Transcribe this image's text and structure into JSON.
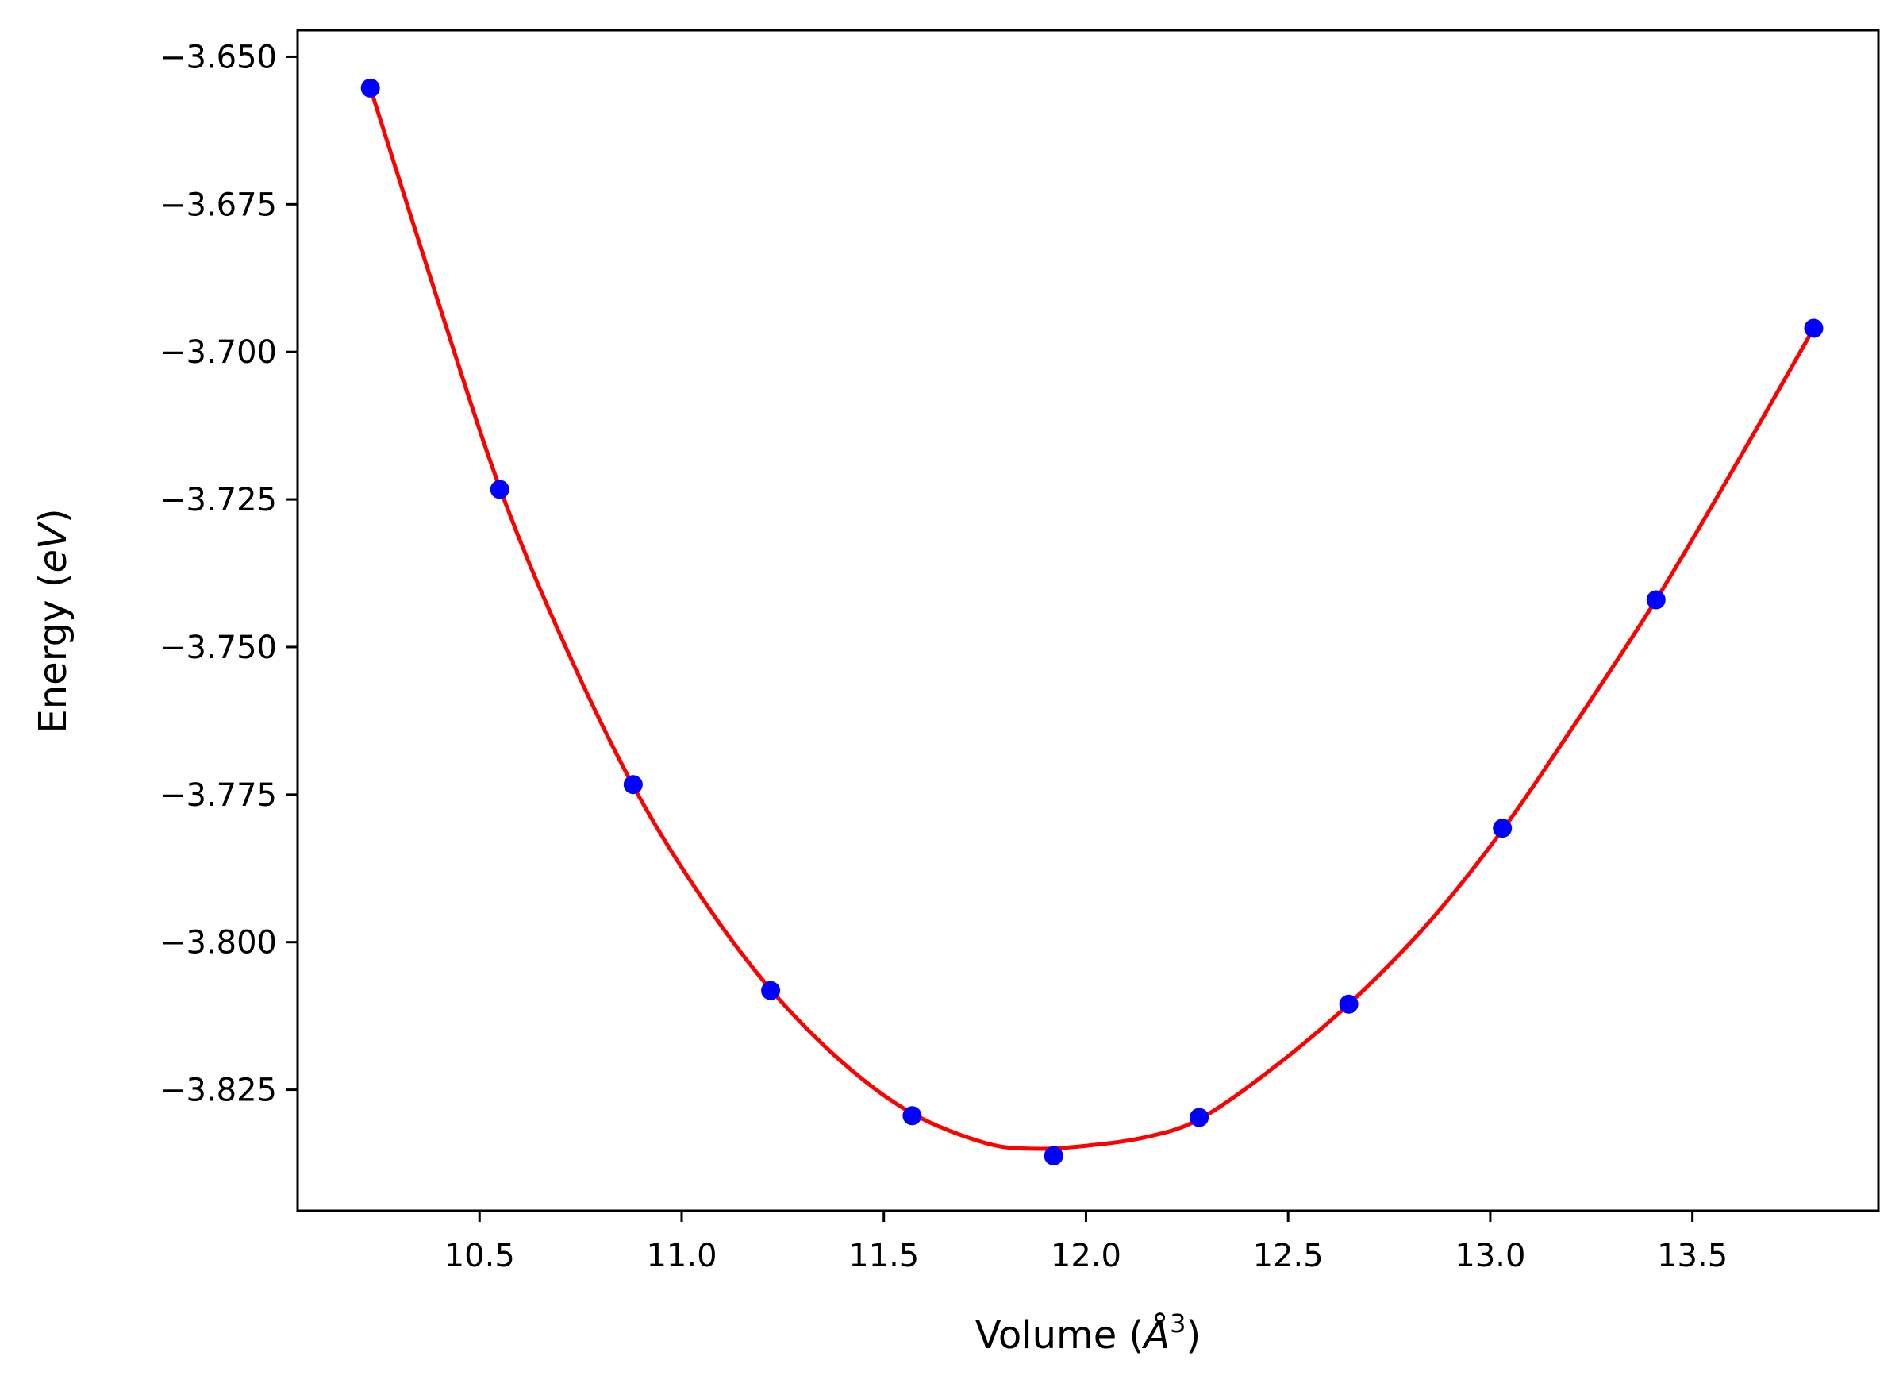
{
  "chart_data": {
    "type": "line",
    "title": "",
    "xlabel": "Volume (",
    "xlabel_symbol": "Å",
    "xlabel_sup": "3",
    "xlabel_close": ")",
    "ylabel": "Energy (",
    "ylabel_unit": "eV",
    "ylabel_close": ")",
    "xlim": [
      10.05,
      13.96
    ],
    "ylim": [
      -3.8455,
      -3.6455
    ],
    "x_ticks": [
      10.5,
      11.0,
      11.5,
      12.0,
      12.5,
      13.0,
      13.5
    ],
    "x_tick_labels": [
      "10.5",
      "11.0",
      "11.5",
      "12.0",
      "12.5",
      "13.0",
      "13.5"
    ],
    "y_ticks": [
      -3.65,
      -3.675,
      -3.7,
      -3.725,
      -3.75,
      -3.775,
      -3.8,
      -3.825
    ],
    "y_tick_labels": [
      "−3.650",
      "−3.675",
      "−3.700",
      "−3.725",
      "−3.750",
      "−3.775",
      "−3.800",
      "−3.825"
    ],
    "grid": false,
    "series": [
      {
        "kind": "scatter",
        "color": "#0000ff",
        "x": [
          10.23,
          10.55,
          10.88,
          11.22,
          11.57,
          11.92,
          12.28,
          12.65,
          13.03,
          13.41,
          13.8
        ],
        "y": [
          -3.6553,
          -3.7233,
          -3.7733,
          -3.8082,
          -3.8294,
          -3.8362,
          -3.8297,
          -3.8105,
          -3.7807,
          -3.742,
          -3.696
        ]
      },
      {
        "kind": "fit",
        "color": "#ff0000",
        "x": [
          10.23,
          10.4,
          10.55,
          10.7,
          10.88,
          11.05,
          11.22,
          11.4,
          11.57,
          11.75,
          11.87,
          12.0,
          12.15,
          12.28,
          12.45,
          12.65,
          12.85,
          13.03,
          13.2,
          13.41,
          13.6,
          13.8
        ],
        "y": [
          -3.6553,
          -3.692,
          -3.723,
          -3.748,
          -3.7735,
          -3.7925,
          -3.808,
          -3.8205,
          -3.829,
          -3.834,
          -3.835,
          -3.8345,
          -3.833,
          -3.83,
          -3.822,
          -3.8105,
          -3.7965,
          -3.781,
          -3.764,
          -3.742,
          -3.72,
          -3.696
        ]
      }
    ]
  }
}
